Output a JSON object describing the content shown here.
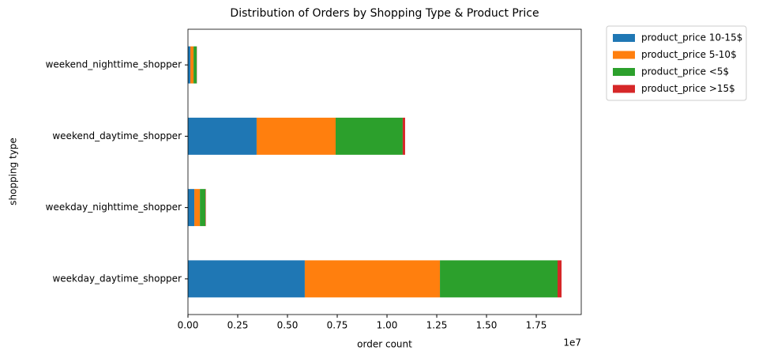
{
  "chart_data": {
    "type": "stacked_barh",
    "title": "Distribution of Orders by Shopping Type & Product Price",
    "xlabel": "order count",
    "ylabel": "shopping type",
    "x_offset_label": "1e7",
    "categories": [
      "weekday_daytime_shopper",
      "weekday_nighttime_shopper",
      "weekend_daytime_shopper",
      "weekend_nighttime_shopper"
    ],
    "series": [
      {
        "name": "product_price 10-15$",
        "color": "#1f77b4",
        "values": [
          5870000,
          320000,
          3450000,
          120000
        ]
      },
      {
        "name": "product_price 5-10$",
        "color": "#ff7f0e",
        "values": [
          6790000,
          280000,
          3970000,
          160000
        ]
      },
      {
        "name": "product_price <5$",
        "color": "#2ca02c",
        "values": [
          5910000,
          280000,
          3370000,
          160000
        ]
      },
      {
        "name": "product_price >15$",
        "color": "#d62728",
        "values": [
          200000,
          20000,
          120000,
          10000
        ]
      }
    ],
    "xlim": [
      0,
      19760000
    ],
    "xticks": [
      {
        "value": 0,
        "label": "0.00"
      },
      {
        "value": 2500000,
        "label": "0.25"
      },
      {
        "value": 5000000,
        "label": "0.50"
      },
      {
        "value": 7500000,
        "label": "0.75"
      },
      {
        "value": 10000000,
        "label": "1.00"
      },
      {
        "value": 12500000,
        "label": "1.25"
      },
      {
        "value": 15000000,
        "label": "1.50"
      },
      {
        "value": 17500000,
        "label": "1.75"
      }
    ],
    "legend": "outside upper right",
    "grid": false
  }
}
